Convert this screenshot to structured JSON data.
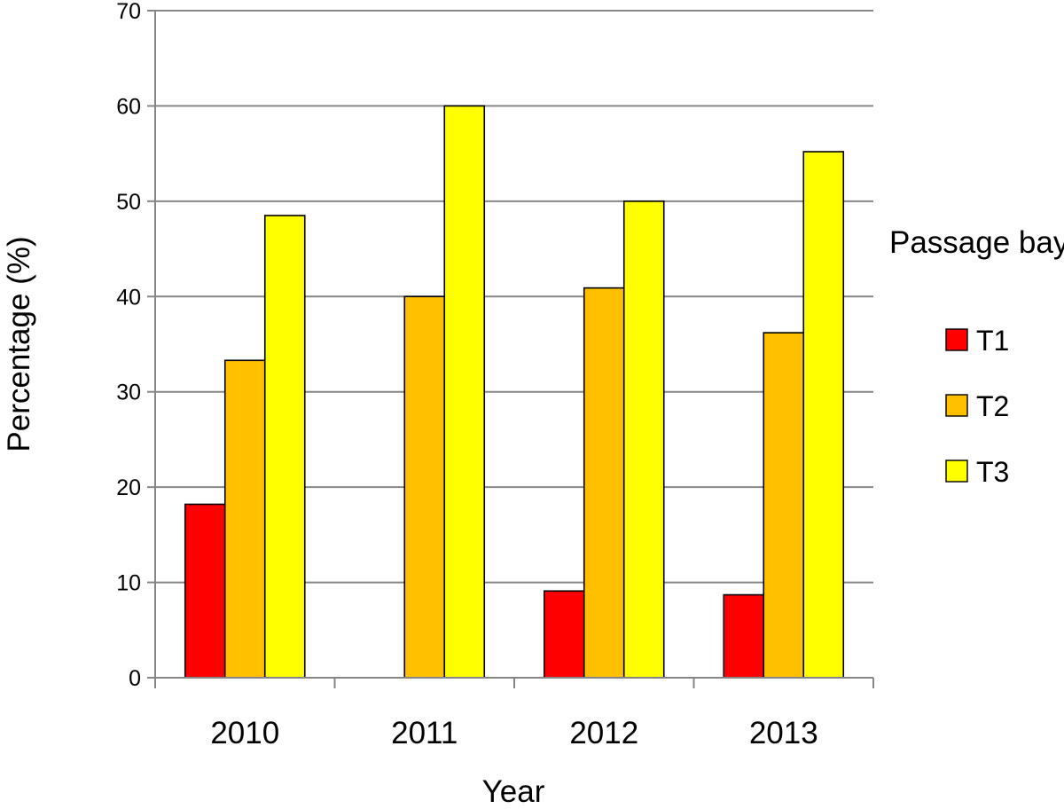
{
  "chart_data": {
    "type": "bar",
    "title": "",
    "xlabel": "Year",
    "ylabel": "Percentage (%)",
    "categories": [
      "2010",
      "2011",
      "2012",
      "2013"
    ],
    "ylim": [
      0,
      70
    ],
    "yticks": [
      0,
      10,
      20,
      30,
      40,
      50,
      60,
      70
    ],
    "grid": true,
    "legend": {
      "title": "Passage bay",
      "placement": "right"
    },
    "series": [
      {
        "name": "T1",
        "color": "#ff0000",
        "values": [
          18.2,
          0,
          9.1,
          8.7
        ]
      },
      {
        "name": "T2",
        "color": "#ffc000",
        "values": [
          33.3,
          40.0,
          40.9,
          36.2
        ]
      },
      {
        "name": "T3",
        "color": "#ffff00",
        "values": [
          48.5,
          60.0,
          50.0,
          55.2
        ]
      }
    ]
  }
}
